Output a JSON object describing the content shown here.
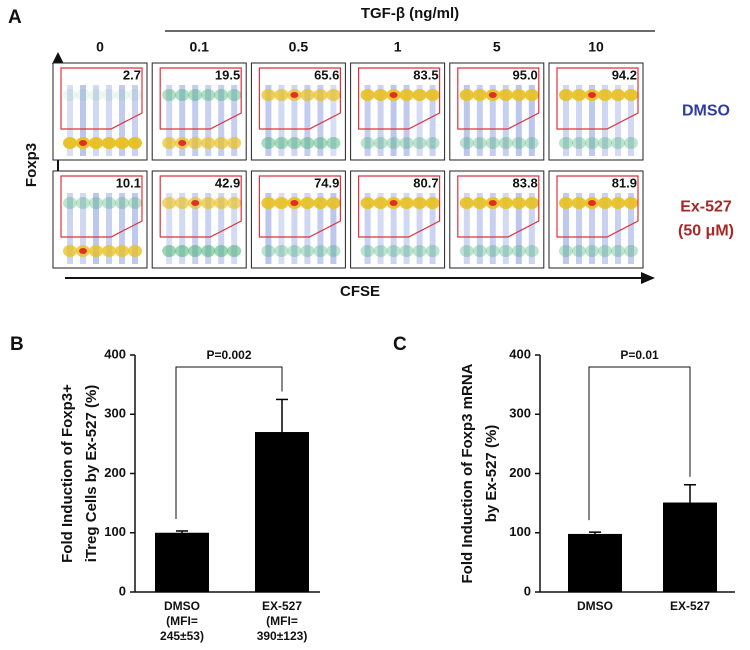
{
  "panel_a": {
    "label": "A",
    "title": "TGF-β (ng/ml)",
    "columns": [
      "0",
      "0.1",
      "0.5",
      "1",
      "5",
      "10"
    ],
    "y_label": "Foxp3",
    "x_label": "CFSE",
    "gate_color": "#e0323c",
    "rows": [
      {
        "name_lines": [
          "DMSO"
        ],
        "color": "#2e3d9e",
        "values": [
          2.7,
          19.5,
          65.6,
          83.5,
          95.0,
          94.2
        ],
        "value_labels": [
          "2.7",
          "19.5",
          "65.6",
          "83.5",
          "95.0",
          "94.2"
        ]
      },
      {
        "name_lines": [
          "Ex-527",
          "(50 μM)"
        ],
        "color": "#a82828",
        "values": [
          10.1,
          42.9,
          74.9,
          80.7,
          83.8,
          81.9
        ]
      }
    ]
  },
  "chart_data": [
    {
      "type": "bar",
      "label": "B",
      "y_label_lines": [
        "Fold Induction of Foxp3+",
        "iTreg Cells by Ex-527 (%)"
      ],
      "categories": [
        [
          "DMSO",
          "(MFI=",
          "245±53)"
        ],
        [
          "EX-527",
          "(MFI=",
          "390±123)"
        ]
      ],
      "values": [
        100,
        270
      ],
      "errors": [
        3,
        55
      ],
      "color": "#000000",
      "ylim": [
        0,
        400
      ],
      "yticks": [
        0,
        100,
        200,
        300,
        400
      ],
      "annotation": "P=0.002"
    },
    {
      "type": "bar",
      "label": "C",
      "y_label_lines": [
        "Fold Induction of Foxp3 mRNA",
        "by Ex-527 (%)"
      ],
      "categories": [
        [
          "DMSO"
        ],
        [
          "EX-527"
        ]
      ],
      "values": [
        98,
        151
      ],
      "errors": [
        3,
        30
      ],
      "color": "#000000",
      "ylim": [
        0,
        400
      ],
      "yticks": [
        0,
        100,
        200,
        300,
        400
      ],
      "annotation": "P=0.01"
    }
  ]
}
